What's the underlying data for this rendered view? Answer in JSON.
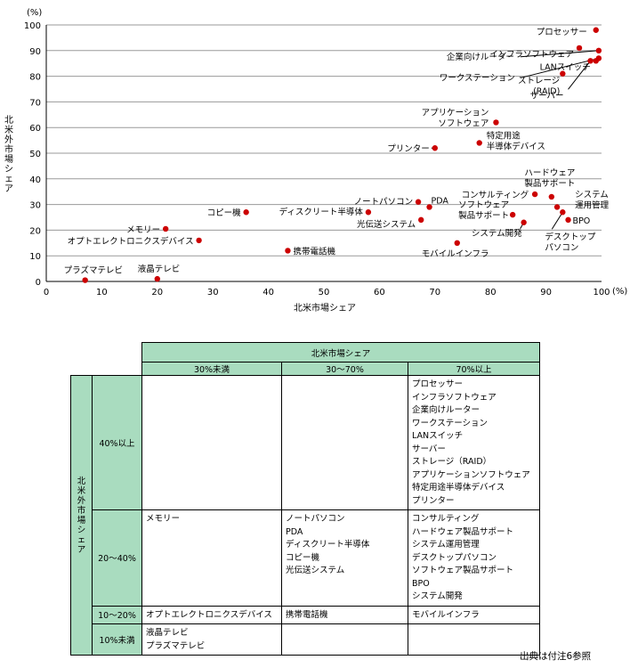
{
  "chart_data": {
    "type": "scatter",
    "xlabel": "北米市場シェア",
    "ylabel": "北米外市場シェア",
    "x_unit": "(%)",
    "y_unit": "(%)",
    "xlim": [
      0,
      100
    ],
    "ylim": [
      0,
      100
    ],
    "xticks": [
      "0",
      "10",
      "20",
      "30",
      "40",
      "50",
      "60",
      "70",
      "80",
      "90",
      "100"
    ],
    "yticks": [
      "0",
      "10",
      "20",
      "30",
      "40",
      "50",
      "60",
      "70",
      "80",
      "90",
      "100"
    ],
    "grid": "horizontal",
    "marker_color": "#cc0000",
    "points": [
      {
        "label": "プロセッサー",
        "x": 99,
        "y": 98
      },
      {
        "label": "インフラソフトウェア",
        "x": 96,
        "y": 91
      },
      {
        "label": "企業向けルーター",
        "x": 99.5,
        "y": 90
      },
      {
        "label": "ワークステーション",
        "x": 99.5,
        "y": 87
      },
      {
        "label": "LANスイッチ",
        "x": 99,
        "y": 86
      },
      {
        "label": "ストレージ\n(RAID)",
        "x": 93,
        "y": 81
      },
      {
        "label": "サーバー",
        "x": 98,
        "y": 86
      },
      {
        "label": "アプリケーション\nソフトウェア",
        "x": 81,
        "y": 62
      },
      {
        "label": "特定用途\n半導体デバイス",
        "x": 78,
        "y": 54
      },
      {
        "label": "プリンター",
        "x": 70,
        "y": 52
      },
      {
        "label": "ハードウェア\n製品サポート",
        "x": 91,
        "y": 33
      },
      {
        "label": "コンサルティング",
        "x": 88,
        "y": 34
      },
      {
        "label": "システム\n運用管理",
        "x": 92,
        "y": 29
      },
      {
        "label": "PDA",
        "x": 69,
        "y": 29
      },
      {
        "label": "ノートパソコン",
        "x": 67,
        "y": 31
      },
      {
        "label": "ディスクリート半導体",
        "x": 58,
        "y": 27
      },
      {
        "label": "コピー機",
        "x": 36,
        "y": 27
      },
      {
        "label": "ソフトウェア\n製品サポート",
        "x": 84,
        "y": 26
      },
      {
        "label": "光伝送システム",
        "x": 67.5,
        "y": 24
      },
      {
        "label": "BPO",
        "x": 94,
        "y": 24
      },
      {
        "label": "システム開発",
        "x": 86,
        "y": 23
      },
      {
        "label": "デスクトップ\nパソコン",
        "x": 93,
        "y": 27
      },
      {
        "label": "メモリー",
        "x": 21.5,
        "y": 20.5
      },
      {
        "label": "オプトエレクトロニクスデバイス",
        "x": 27.5,
        "y": 16
      },
      {
        "label": "モバイルインフラ",
        "x": 74,
        "y": 15
      },
      {
        "label": "携帯電話機",
        "x": 43.5,
        "y": 12
      },
      {
        "label": "プラズマテレビ",
        "x": 7,
        "y": 0.5
      },
      {
        "label": "液晶テレビ",
        "x": 20,
        "y": 1
      }
    ]
  },
  "matrix": {
    "top_header": "北米市場シェア",
    "col_headers": [
      "30%未満",
      "30〜70%",
      "70%以上"
    ],
    "side_header": "北米外市場シェア",
    "rows": [
      {
        "label": "40%以上",
        "cells": [
          [],
          [],
          [
            "プロセッサー",
            "インフラソフトウェア",
            "企業向けルーター",
            "ワークステーション",
            "LANスイッチ",
            "サーバー",
            "ストレージ（RAID）",
            "アプリケーションソフトウェア",
            "特定用途半導体デバイス",
            "プリンター"
          ]
        ]
      },
      {
        "label": "20〜40%",
        "cells": [
          [
            "メモリー"
          ],
          [
            "ノートパソコン",
            "PDA",
            "ディスクリート半導体",
            "コピー機",
            "光伝送システム"
          ],
          [
            "コンサルティング",
            "ハードウェア製品サポート",
            "システム運用管理",
            "デスクトップパソコン",
            "ソフトウェア製品サポート",
            "BPO",
            "システム開発"
          ]
        ]
      },
      {
        "label": "10〜20%",
        "cells": [
          [
            "オプトエレクトロニクスデバイス"
          ],
          [
            "携帯電話機"
          ],
          [
            "モバイルインフラ"
          ]
        ]
      },
      {
        "label": "10%未満",
        "cells": [
          [
            "液晶テレビ",
            "プラズマテレビ"
          ],
          [],
          []
        ]
      }
    ]
  },
  "source_note": "出典は付注6参照"
}
